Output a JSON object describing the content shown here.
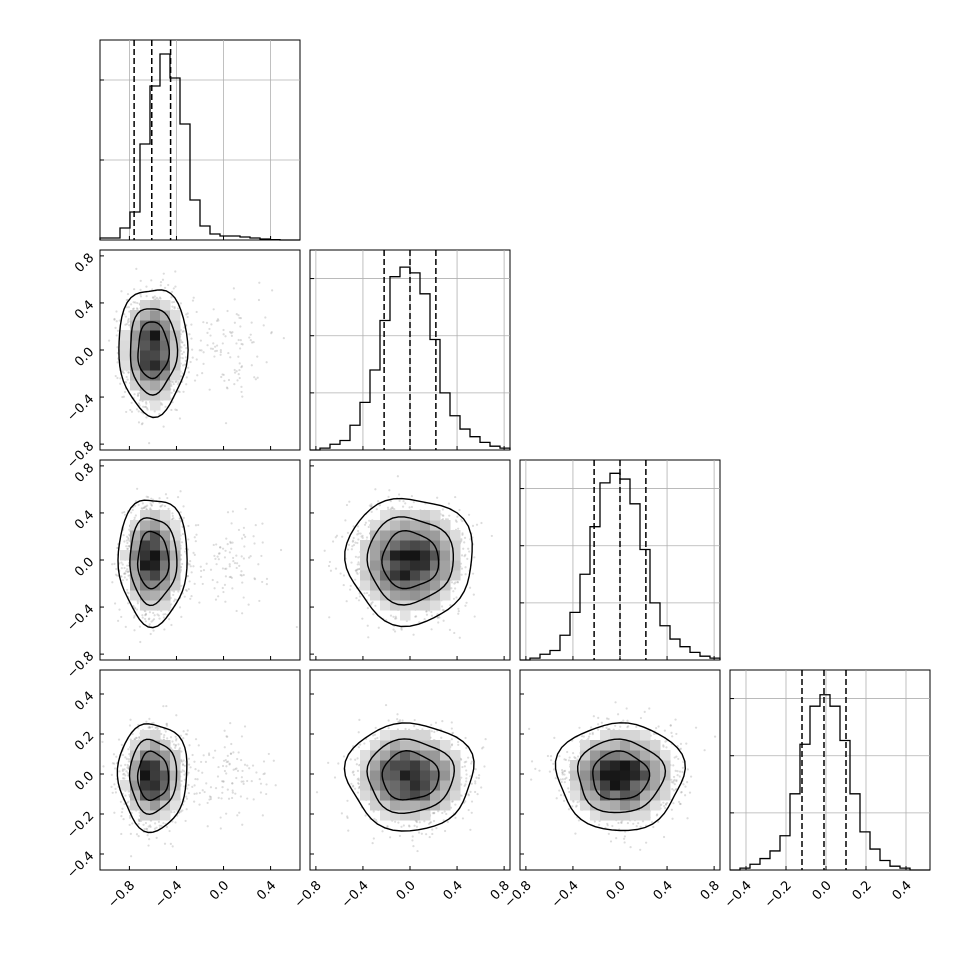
{
  "chart_data": {
    "type": "corner",
    "n_params": 4,
    "colors": {
      "hist_line": "#000000",
      "scatter": "#9a9a9a",
      "grid": "#b0b0b0",
      "quantile_line": "#000000"
    },
    "params": [
      {
        "range": [
          -1.05,
          0.65
        ],
        "ticks": [
          -0.8,
          -0.4,
          0.0,
          0.4
        ],
        "tick_labels": [
          "−0.8",
          "−0.4",
          "0.0",
          "0.4"
        ],
        "quantiles": [
          -0.76,
          -0.61,
          -0.45
        ],
        "mean": -0.6,
        "sd": 0.12,
        "hist_counts": [
          1,
          1,
          6,
          14,
          48,
          77,
          93,
          81,
          58,
          20,
          7,
          3,
          2,
          2,
          1.5,
          1,
          0.5,
          0.2,
          0,
          0
        ],
        "hist_ylim": [
          0,
          100
        ],
        "hist_yticks": [
          40,
          80
        ]
      },
      {
        "range": [
          -0.85,
          0.85
        ],
        "ticks": [
          -0.8,
          -0.4,
          0.0,
          0.4,
          0.8
        ],
        "tick_labels": [
          "−0.8",
          "−0.4",
          "0.0",
          "0.4",
          "0.8"
        ],
        "quantiles": [
          -0.22,
          0.0,
          0.22
        ],
        "mean": 0.0,
        "sd": 0.22,
        "hist_counts": [
          0,
          1,
          3,
          5,
          13,
          25,
          42,
          68,
          91,
          96,
          93,
          82,
          58,
          30,
          18,
          11,
          7,
          4,
          2,
          1
        ],
        "hist_ylim": [
          0,
          105
        ],
        "hist_yticks": [
          30,
          60,
          90
        ]
      },
      {
        "range": [
          -0.85,
          0.85
        ],
        "ticks": [
          -0.8,
          -0.4,
          0.0,
          0.4,
          0.8
        ],
        "tick_labels": [
          "−0.8",
          "−0.4",
          "0.0",
          "0.4",
          "0.8"
        ],
        "quantiles": [
          -0.22,
          0.0,
          0.22
        ],
        "mean": 0.0,
        "sd": 0.22,
        "hist_counts": [
          0,
          1,
          3,
          5,
          13,
          25,
          45,
          70,
          93,
          98,
          95,
          82,
          58,
          30,
          18,
          11,
          7,
          4,
          2,
          1
        ],
        "hist_ylim": [
          0,
          105
        ],
        "hist_yticks": [
          30,
          60,
          90
        ]
      },
      {
        "range": [
          -0.48,
          0.52
        ],
        "ticks": [
          -0.4,
          -0.2,
          0.0,
          0.2,
          0.4
        ],
        "tick_labels": [
          "−0.4",
          "−0.2",
          "0.0",
          "0.2",
          "0.4"
        ],
        "quantiles": [
          -0.12,
          -0.01,
          0.1
        ],
        "mean": -0.01,
        "sd": 0.11,
        "hist_counts": [
          0,
          1,
          3,
          6,
          10,
          18,
          40,
          66,
          86,
          92,
          86,
          68,
          40,
          20,
          11,
          5,
          2,
          1,
          0,
          0
        ],
        "hist_ylim": [
          0,
          105
        ],
        "hist_yticks": [
          30,
          60,
          90
        ]
      }
    ],
    "pairs": [
      {
        "x": 0,
        "y": 1
      },
      {
        "x": 0,
        "y": 2
      },
      {
        "x": 1,
        "y": 2
      },
      {
        "x": 0,
        "y": 3
      },
      {
        "x": 1,
        "y": 3
      },
      {
        "x": 2,
        "y": 3
      }
    ]
  }
}
